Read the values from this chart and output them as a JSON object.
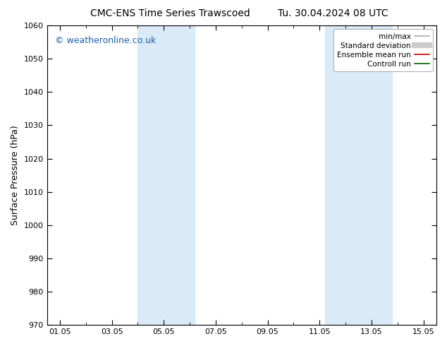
{
  "title_left": "CMC-ENS Time Series Trawscoed",
  "title_right": "Tu. 30.04.2024 08 UTC",
  "ylabel": "Surface Pressure (hPa)",
  "ylim": [
    970,
    1060
  ],
  "yticks": [
    970,
    980,
    990,
    1000,
    1010,
    1020,
    1030,
    1040,
    1050,
    1060
  ],
  "xtick_labels": [
    "01.05",
    "03.05",
    "05.05",
    "07.05",
    "09.05",
    "11.05",
    "13.05",
    "15.05"
  ],
  "xtick_positions": [
    0,
    2,
    4,
    6,
    8,
    10,
    12,
    14
  ],
  "xlim": [
    -0.5,
    14.5
  ],
  "shaded_bands": [
    {
      "xmin": 3.0,
      "xmax": 5.2,
      "color": "#daeaf8",
      "alpha": 1.0
    },
    {
      "xmin": 10.2,
      "xmax": 12.8,
      "color": "#daeaf8",
      "alpha": 1.0
    }
  ],
  "watermark": "© weatheronline.co.uk",
  "watermark_color": "#1a5faa",
  "watermark_fontsize": 9,
  "legend_items": [
    {
      "label": "min/max",
      "color": "#aaaaaa",
      "lw": 1.2
    },
    {
      "label": "Standard deviation",
      "color": "#cccccc",
      "lw": 6
    },
    {
      "label": "Ensemble mean run",
      "color": "#cc0000",
      "lw": 1.2
    },
    {
      "label": "Controll run",
      "color": "#006600",
      "lw": 1.2
    }
  ],
  "bg_color": "#ffffff",
  "title_fontsize": 10,
  "axis_fontsize": 9,
  "tick_fontsize": 8
}
